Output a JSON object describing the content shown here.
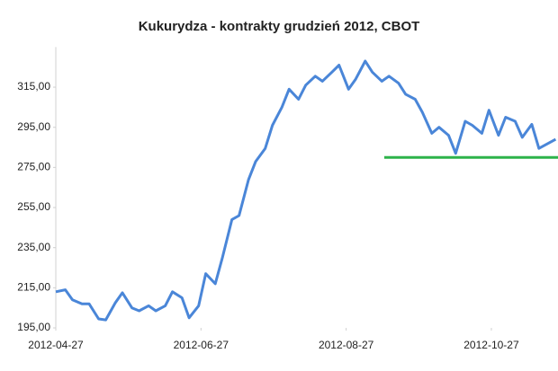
{
  "chart_data": {
    "type": "line",
    "title": "Kukurydza - kontrakty grudzień 2012, CBOT",
    "x": [
      "2012-04-27",
      "2012-05-01",
      "2012-05-04",
      "2012-05-08",
      "2012-05-11",
      "2012-05-15",
      "2012-05-18",
      "2012-05-22",
      "2012-05-25",
      "2012-05-29",
      "2012-06-01",
      "2012-06-05",
      "2012-06-08",
      "2012-06-12",
      "2012-06-15",
      "2012-06-19",
      "2012-06-22",
      "2012-06-26",
      "2012-06-29",
      "2012-07-03",
      "2012-07-06",
      "2012-07-10",
      "2012-07-13",
      "2012-07-17",
      "2012-07-20",
      "2012-07-24",
      "2012-07-27",
      "2012-07-31",
      "2012-08-03",
      "2012-08-07",
      "2012-08-10",
      "2012-08-14",
      "2012-08-17",
      "2012-08-21",
      "2012-08-24",
      "2012-08-28",
      "2012-08-31",
      "2012-09-04",
      "2012-09-07",
      "2012-09-11",
      "2012-09-14",
      "2012-09-18",
      "2012-09-21",
      "2012-09-25",
      "2012-09-28",
      "2012-10-02",
      "2012-10-05",
      "2012-10-09",
      "2012-10-12",
      "2012-10-16",
      "2012-10-19",
      "2012-10-23",
      "2012-10-26",
      "2012-10-30",
      "2012-11-02",
      "2012-11-06",
      "2012-11-09",
      "2012-11-13",
      "2012-11-16",
      "2012-11-23"
    ],
    "series": [
      {
        "color": "#4a86d8",
        "values": [
          213,
          214,
          209,
          207,
          207,
          199.5,
          199,
          207.5,
          212.5,
          205,
          203.5,
          206,
          203.5,
          206,
          213,
          210,
          200,
          206,
          222,
          217,
          230,
          249,
          251,
          269,
          278,
          284.5,
          296,
          305,
          314,
          309,
          316,
          320.5,
          318,
          322.5,
          326,
          314,
          319,
          328,
          322.5,
          318,
          320.5,
          317,
          311.5,
          309,
          302.5,
          292,
          295,
          291,
          282,
          298,
          296,
          292,
          303.5,
          291,
          300,
          298,
          290,
          296.5,
          284.5,
          289
        ]
      }
    ],
    "xlim": [
      "2012-04-27",
      "2012-11-24"
    ],
    "xticks": [
      "2012-04-27",
      "2012-06-27",
      "2012-08-27",
      "2012-10-27"
    ],
    "ylim": [
      195,
      335
    ],
    "yticks": [
      {
        "value": 195,
        "label": "195,00"
      },
      {
        "value": 215,
        "label": "215,00"
      },
      {
        "value": 235,
        "label": "235,00"
      },
      {
        "value": 255,
        "label": "255,00"
      },
      {
        "value": 275,
        "label": "275,00"
      },
      {
        "value": 295,
        "label": "295,00"
      },
      {
        "value": 315,
        "label": "315,00"
      }
    ],
    "reference_line": {
      "value": 280,
      "color": "#2db34a",
      "x_start": "2012-09-12"
    },
    "grid": false
  }
}
